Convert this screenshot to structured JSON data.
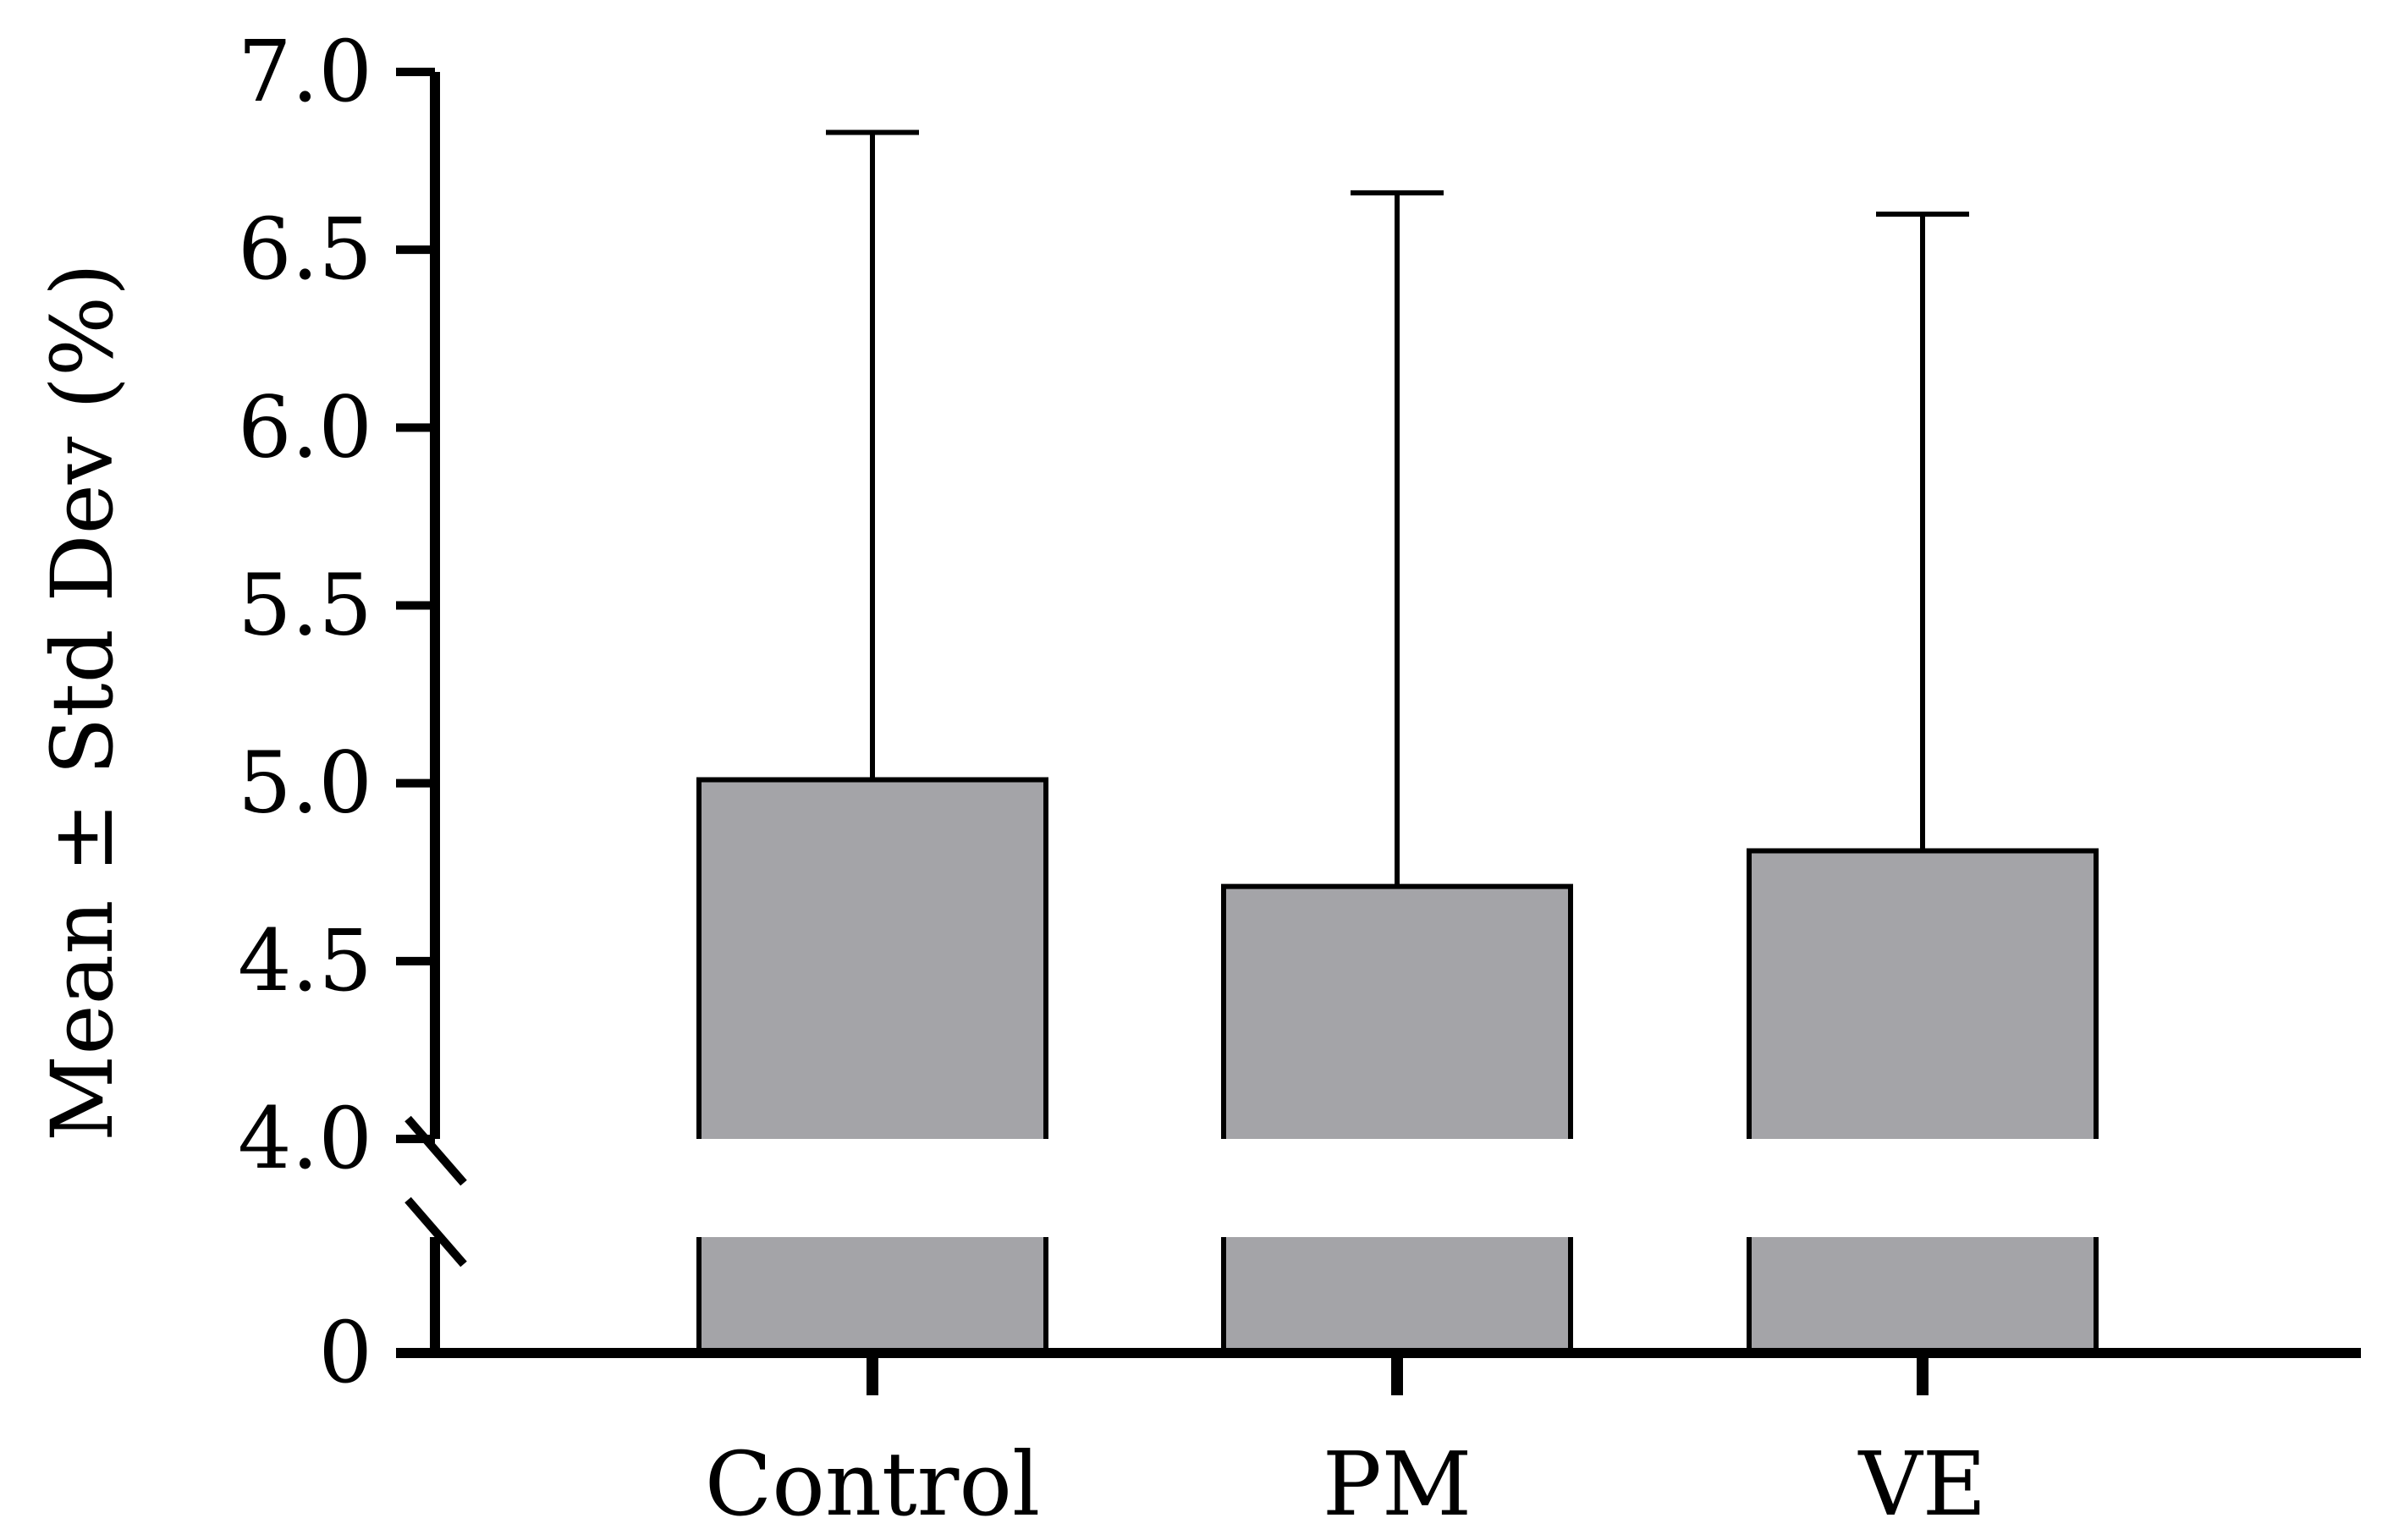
{
  "chart_data": {
    "type": "bar",
    "title": "",
    "xlabel": "",
    "ylabel": "Mean ± Std Dev (%)",
    "categories": [
      "Control",
      "PM",
      "VE"
    ],
    "series": [
      {
        "name": "Mean",
        "values": [
          5.01,
          4.71,
          4.81
        ],
        "error_upper": [
          6.83,
          6.66,
          6.6
        ]
      }
    ],
    "y_axis": {
      "broken": true,
      "lower_segment": [
        0,
        4.0
      ],
      "upper_segment": [
        4.0,
        7.0
      ],
      "upper_ticks": [
        "4.0",
        "4.5",
        "5.0",
        "5.5",
        "6.0",
        "6.5",
        "7.0"
      ],
      "upper_tick_values": [
        4.0,
        4.5,
        5.0,
        5.5,
        6.0,
        6.5,
        7.0
      ],
      "lower_ticks": [
        "0"
      ],
      "lower_tick_values": [
        0
      ]
    },
    "grid": false,
    "bar_color": "#a4a4a8",
    "stroke_color": "#000000"
  }
}
